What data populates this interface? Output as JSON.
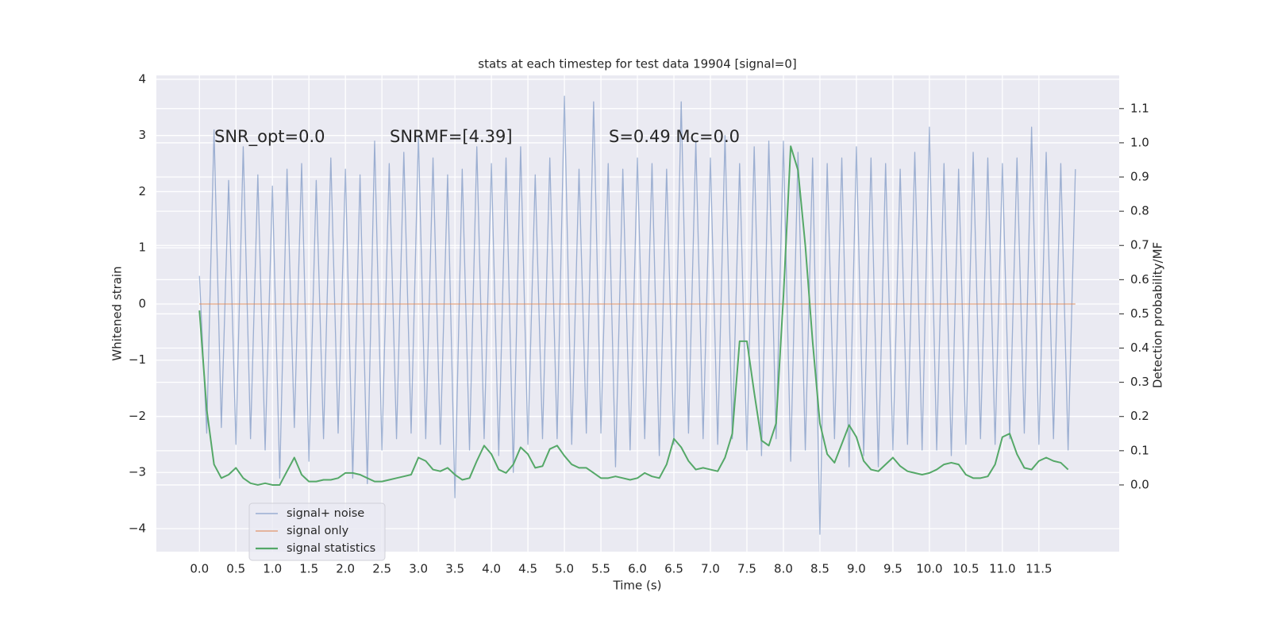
{
  "chart_data": {
    "type": "line",
    "title": "stats at each timestep for test data 19904 [signal=0]",
    "x_label": "Time (s)",
    "y_label": "Whitened strain",
    "y2_label": "Detection probability/MF",
    "annotations": [
      "SNR_opt=0.0",
      "SNRMF=[4.39]",
      "S=0.49   Mc=0.0"
    ],
    "grid": true,
    "legend": "lower left",
    "xlim": [
      -0.59,
      12.6
    ],
    "ylim": [
      -4.41,
      4.07
    ],
    "y2lim": [
      -0.195,
      1.197
    ],
    "xticks": [
      {
        "value": 0,
        "label": "0.0"
      },
      {
        "value": 0.5,
        "label": "0.5"
      },
      {
        "value": 1,
        "label": "1.0"
      },
      {
        "value": 1.5,
        "label": "1.5"
      },
      {
        "value": 2,
        "label": "2.0"
      },
      {
        "value": 2.5,
        "label": "2.5"
      },
      {
        "value": 3,
        "label": "3.0"
      },
      {
        "value": 3.5,
        "label": "3.5"
      },
      {
        "value": 4,
        "label": "4.0"
      },
      {
        "value": 4.5,
        "label": "4.5"
      },
      {
        "value": 5,
        "label": "5.0"
      },
      {
        "value": 5.5,
        "label": "5.5"
      },
      {
        "value": 6,
        "label": "6.0"
      },
      {
        "value": 6.5,
        "label": "6.5"
      },
      {
        "value": 7,
        "label": "7.0"
      },
      {
        "value": 7.5,
        "label": "7.5"
      },
      {
        "value": 8,
        "label": "8.0"
      },
      {
        "value": 8.5,
        "label": "8.5"
      },
      {
        "value": 9,
        "label": "9.0"
      },
      {
        "value": 9.5,
        "label": "9.5"
      },
      {
        "value": 10,
        "label": "10.0"
      },
      {
        "value": 10.5,
        "label": "10.5"
      },
      {
        "value": 11,
        "label": "11.0"
      },
      {
        "value": 11.5,
        "label": "11.5"
      }
    ],
    "yticks": [
      {
        "value": -4,
        "label": "−4"
      },
      {
        "value": -3,
        "label": "−3"
      },
      {
        "value": -2,
        "label": "−2"
      },
      {
        "value": -1,
        "label": "−1"
      },
      0,
      1,
      2,
      3,
      4
    ],
    "y2ticks": [
      {
        "value": 0,
        "label": "0.0"
      },
      {
        "value": 0.1,
        "label": "0.1"
      },
      {
        "value": 0.2,
        "label": "0.2"
      },
      {
        "value": 0.3,
        "label": "0.3"
      },
      {
        "value": 0.4,
        "label": "0.4"
      },
      {
        "value": 0.5,
        "label": "0.5"
      },
      {
        "value": 0.6,
        "label": "0.6"
      },
      {
        "value": 0.7,
        "label": "0.7"
      },
      {
        "value": 0.8,
        "label": "0.8"
      },
      {
        "value": 0.9,
        "label": "0.9"
      },
      {
        "value": 1.0,
        "label": "1.0"
      },
      {
        "value": 1.1,
        "label": "1.1"
      }
    ],
    "series": [
      {
        "name": "signal+ noise",
        "color": "#4c72b0",
        "x": [
          0.0,
          0.1,
          0.2,
          0.3,
          0.4,
          0.5,
          0.6,
          0.7,
          0.8,
          0.9,
          1.0,
          1.1,
          1.2,
          1.3,
          1.4,
          1.5,
          1.6,
          1.7,
          1.8,
          1.9,
          2.0,
          2.1,
          2.2,
          2.3,
          2.4,
          2.5,
          2.6,
          2.7,
          2.8,
          2.9,
          3.0,
          3.1,
          3.2,
          3.3,
          3.4,
          3.5,
          3.6,
          3.7,
          3.8,
          3.9,
          4.0,
          4.1,
          4.2,
          4.3,
          4.4,
          4.5,
          4.6,
          4.7,
          4.8,
          4.9,
          5.0,
          5.1,
          5.2,
          5.3,
          5.4,
          5.5,
          5.6,
          5.7,
          5.8,
          5.9,
          6.0,
          6.1,
          6.2,
          6.3,
          6.4,
          6.5,
          6.6,
          6.7,
          6.8,
          6.9,
          7.0,
          7.1,
          7.2,
          7.3,
          7.4,
          7.5,
          7.6,
          7.7,
          7.8,
          7.9,
          8.0,
          8.1,
          8.2,
          8.3,
          8.4,
          8.5,
          8.6,
          8.7,
          8.8,
          8.9,
          9.0,
          9.1,
          9.2,
          9.3,
          9.4,
          9.5,
          9.6,
          9.7,
          9.8,
          9.9,
          10.0,
          10.1,
          10.2,
          10.3,
          10.4,
          10.5,
          10.6,
          10.7,
          10.8,
          10.9,
          11.0,
          11.1,
          11.2,
          11.3,
          11.4,
          11.5,
          11.6,
          11.7,
          11.8,
          11.9,
          12.0
        ],
        "values": [
          0.5,
          -2.3,
          3.1,
          -2.2,
          2.2,
          -2.5,
          2.8,
          -2.4,
          2.3,
          -2.6,
          2.1,
          -3.1,
          2.4,
          -2.2,
          2.5,
          -2.8,
          2.2,
          -2.4,
          2.6,
          -2.3,
          2.4,
          -3.1,
          2.3,
          -3.2,
          2.9,
          -2.6,
          2.5,
          -2.4,
          2.7,
          -2.3,
          3.0,
          -2.4,
          2.6,
          -2.5,
          2.3,
          -3.45,
          2.4,
          -2.6,
          2.8,
          -2.4,
          2.5,
          -2.7,
          2.6,
          -3.0,
          2.8,
          -2.5,
          2.3,
          -2.4,
          2.6,
          -2.4,
          3.7,
          -2.5,
          2.4,
          -2.3,
          3.6,
          -2.3,
          2.5,
          -2.9,
          2.4,
          -2.6,
          2.6,
          -2.4,
          2.5,
          -2.7,
          2.4,
          -2.5,
          3.6,
          -2.3,
          2.9,
          -2.4,
          2.6,
          -2.5,
          3.0,
          -2.4,
          2.5,
          -2.6,
          2.8,
          -2.7,
          2.9,
          -2.4,
          2.9,
          -2.8,
          2.7,
          -2.6,
          2.6,
          -4.1,
          2.5,
          -2.4,
          2.6,
          -2.9,
          2.8,
          -2.7,
          2.6,
          -2.9,
          2.5,
          -2.6,
          2.4,
          -2.5,
          2.7,
          -2.6,
          3.15,
          -2.6,
          2.5,
          -2.7,
          2.4,
          -2.5,
          2.7,
          -2.4,
          2.6,
          -2.5,
          2.5,
          -2.4,
          2.6,
          -2.3,
          3.15,
          -2.5,
          2.7,
          -2.4,
          2.5,
          -2.6,
          2.4
        ]
      },
      {
        "name": "signal only",
        "color": "#dd8452",
        "x": [
          0,
          12
        ],
        "values": [
          0,
          0
        ]
      },
      {
        "name": "signal statistics",
        "color": "#55a868",
        "axis": "y2",
        "x": [
          0.0,
          0.1,
          0.2,
          0.3,
          0.4,
          0.5,
          0.6,
          0.7,
          0.8,
          0.9,
          1.0,
          1.1,
          1.2,
          1.3,
          1.4,
          1.5,
          1.6,
          1.7,
          1.8,
          1.9,
          2.0,
          2.1,
          2.2,
          2.3,
          2.4,
          2.5,
          2.6,
          2.7,
          2.8,
          2.9,
          3.0,
          3.1,
          3.2,
          3.3,
          3.4,
          3.5,
          3.6,
          3.7,
          3.8,
          3.9,
          4.0,
          4.1,
          4.2,
          4.3,
          4.4,
          4.5,
          4.6,
          4.7,
          4.8,
          4.9,
          5.0,
          5.1,
          5.2,
          5.3,
          5.4,
          5.5,
          5.6,
          5.7,
          5.8,
          5.9,
          6.0,
          6.1,
          6.2,
          6.3,
          6.4,
          6.5,
          6.6,
          6.7,
          6.8,
          6.9,
          7.0,
          7.1,
          7.2,
          7.3,
          7.4,
          7.5,
          7.6,
          7.7,
          7.8,
          7.9,
          8.0,
          8.1,
          8.2,
          8.3,
          8.4,
          8.5,
          8.6,
          8.7,
          8.8,
          8.9,
          9.0,
          9.1,
          9.2,
          9.3,
          9.4,
          9.5,
          9.6,
          9.7,
          9.8,
          9.9,
          10.0,
          10.1,
          10.2,
          10.3,
          10.4,
          10.5,
          10.6,
          10.7,
          10.8,
          10.9,
          11.0,
          11.1,
          11.2,
          11.3,
          11.4,
          11.5,
          11.6,
          11.7,
          11.8,
          11.9
        ],
        "values": [
          0.51,
          0.22,
          0.06,
          0.02,
          0.03,
          0.05,
          0.02,
          0.005,
          0.0,
          0.005,
          0.0,
          0.0,
          0.04,
          0.08,
          0.03,
          0.01,
          0.01,
          0.015,
          0.015,
          0.02,
          0.035,
          0.035,
          0.03,
          0.02,
          0.01,
          0.01,
          0.015,
          0.02,
          0.025,
          0.03,
          0.08,
          0.07,
          0.045,
          0.04,
          0.05,
          0.03,
          0.015,
          0.02,
          0.07,
          0.115,
          0.09,
          0.045,
          0.035,
          0.06,
          0.11,
          0.09,
          0.05,
          0.055,
          0.105,
          0.115,
          0.085,
          0.06,
          0.05,
          0.05,
          0.035,
          0.02,
          0.02,
          0.025,
          0.02,
          0.015,
          0.02,
          0.035,
          0.025,
          0.02,
          0.06,
          0.135,
          0.11,
          0.07,
          0.045,
          0.05,
          0.045,
          0.04,
          0.08,
          0.15,
          0.42,
          0.42,
          0.27,
          0.13,
          0.115,
          0.18,
          0.55,
          0.99,
          0.92,
          0.7,
          0.42,
          0.18,
          0.09,
          0.065,
          0.12,
          0.175,
          0.14,
          0.07,
          0.045,
          0.04,
          0.06,
          0.08,
          0.055,
          0.04,
          0.035,
          0.03,
          0.035,
          0.045,
          0.06,
          0.065,
          0.06,
          0.03,
          0.02,
          0.02,
          0.025,
          0.06,
          0.14,
          0.15,
          0.09,
          0.05,
          0.045,
          0.07,
          0.08,
          0.07,
          0.065,
          0.045
        ]
      }
    ]
  }
}
